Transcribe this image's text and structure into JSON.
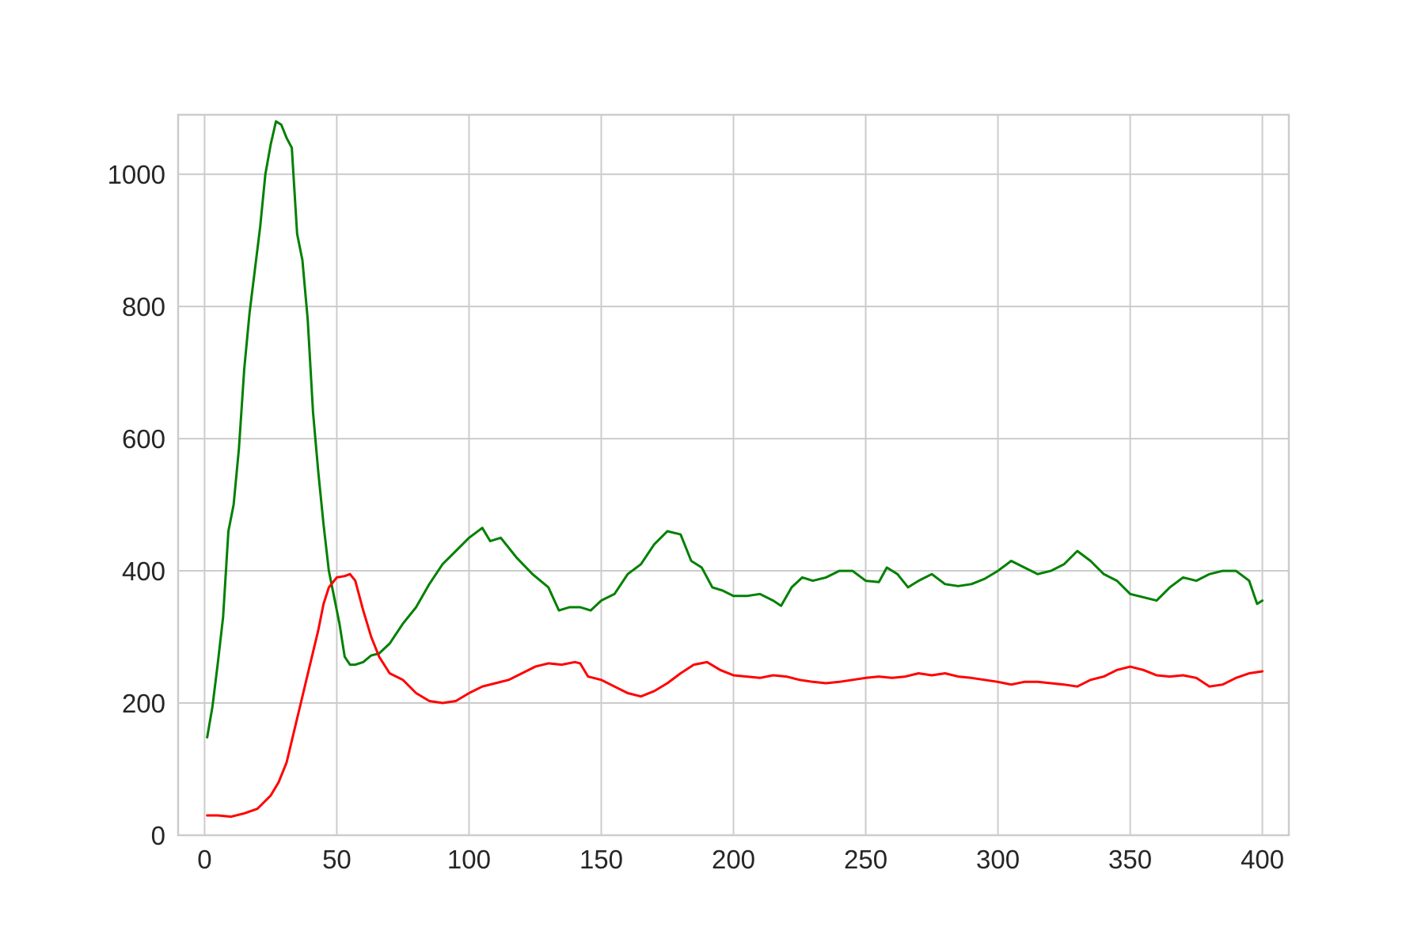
{
  "chart_data": {
    "type": "line",
    "title": "",
    "xlabel": "",
    "ylabel": "",
    "xlim": [
      -10,
      410
    ],
    "ylim": [
      0,
      1090
    ],
    "grid": true,
    "legend": "none",
    "x_ticks": [
      0,
      50,
      100,
      150,
      200,
      250,
      300,
      350,
      400
    ],
    "x_tick_labels": [
      "0",
      "50",
      "100",
      "150",
      "200",
      "250",
      "300",
      "350",
      "400"
    ],
    "y_ticks": [
      0,
      200,
      400,
      600,
      800,
      1000
    ],
    "y_tick_labels": [
      "0",
      "200",
      "400",
      "600",
      "800",
      "1000"
    ],
    "series": [
      {
        "color": "#008000",
        "x": [
          1,
          3,
          5,
          7,
          9,
          11,
          13,
          15,
          17,
          19,
          21,
          23,
          25,
          27,
          29,
          31,
          33,
          35,
          37,
          39,
          41,
          43,
          45,
          47,
          49,
          51,
          53,
          55,
          57,
          60,
          63,
          66,
          70,
          75,
          80,
          85,
          90,
          95,
          100,
          105,
          108,
          112,
          118,
          124,
          130,
          134,
          138,
          142,
          146,
          150,
          155,
          160,
          165,
          170,
          175,
          180,
          184,
          188,
          192,
          196,
          200,
          205,
          210,
          215,
          218,
          222,
          226,
          230,
          235,
          240,
          245,
          250,
          255,
          258,
          262,
          266,
          270,
          275,
          280,
          285,
          290,
          295,
          300,
          305,
          310,
          315,
          320,
          325,
          330,
          335,
          340,
          345,
          350,
          355,
          360,
          365,
          370,
          375,
          380,
          385,
          390,
          395,
          398,
          400
        ],
        "values": [
          148,
          195,
          260,
          330,
          460,
          500,
          585,
          705,
          790,
          855,
          920,
          1000,
          1045,
          1080,
          1075,
          1055,
          1040,
          910,
          870,
          780,
          640,
          550,
          470,
          400,
          360,
          320,
          270,
          258,
          258,
          262,
          272,
          275,
          290,
          320,
          345,
          380,
          410,
          430,
          450,
          465,
          445,
          450,
          420,
          395,
          375,
          340,
          345,
          345,
          340,
          355,
          365,
          395,
          410,
          440,
          460,
          455,
          415,
          405,
          375,
          370,
          362,
          362,
          365,
          355,
          347,
          375,
          390,
          385,
          390,
          400,
          400,
          385,
          383,
          405,
          395,
          375,
          385,
          395,
          380,
          377,
          380,
          388,
          400,
          415,
          405,
          395,
          400,
          410,
          430,
          415,
          395,
          385,
          365,
          360,
          355,
          375,
          390,
          385,
          395,
          400,
          400,
          385,
          350,
          355
        ]
      },
      {
        "color": "#ff0000",
        "x": [
          1,
          5,
          10,
          15,
          20,
          25,
          28,
          31,
          34,
          37,
          40,
          43,
          45,
          47,
          50,
          53,
          55,
          57,
          60,
          63,
          66,
          70,
          75,
          80,
          85,
          90,
          95,
          100,
          105,
          110,
          115,
          120,
          125,
          130,
          135,
          140,
          142,
          145,
          150,
          155,
          160,
          165,
          170,
          175,
          180,
          185,
          190,
          195,
          200,
          205,
          210,
          215,
          220,
          225,
          230,
          235,
          240,
          245,
          250,
          255,
          260,
          265,
          270,
          275,
          280,
          285,
          290,
          295,
          300,
          305,
          310,
          315,
          320,
          325,
          330,
          335,
          340,
          345,
          350,
          355,
          360,
          365,
          370,
          375,
          380,
          385,
          390,
          395,
          400
        ],
        "values": [
          30,
          30,
          28,
          33,
          40,
          60,
          80,
          110,
          160,
          210,
          260,
          310,
          350,
          375,
          390,
          392,
          395,
          385,
          340,
          300,
          270,
          245,
          235,
          215,
          203,
          200,
          203,
          215,
          225,
          230,
          235,
          245,
          255,
          260,
          258,
          262,
          260,
          240,
          235,
          225,
          215,
          210,
          218,
          230,
          245,
          258,
          262,
          250,
          242,
          240,
          238,
          242,
          240,
          235,
          232,
          230,
          232,
          235,
          238,
          240,
          238,
          240,
          245,
          242,
          245,
          240,
          238,
          235,
          232,
          228,
          232,
          232,
          230,
          228,
          225,
          235,
          240,
          250,
          255,
          250,
          242,
          240,
          242,
          238,
          225,
          228,
          238,
          245,
          248
        ]
      }
    ]
  }
}
